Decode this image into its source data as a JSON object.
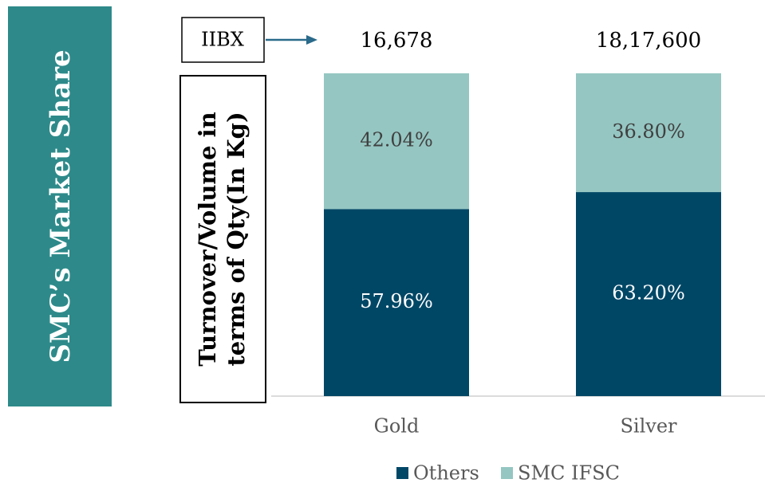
{
  "chart_data": {
    "type": "stacked_bar",
    "title": "SMC’s Market Share",
    "ylabel": "Turnover/Volume in terms of Qty(In Kg)",
    "categories": [
      "Gold",
      "Silver"
    ],
    "ylim": [
      0,
      100
    ],
    "series": [
      {
        "name": "Others",
        "color": "#004766",
        "values": [
          57.96,
          63.2
        ],
        "value_labels": [
          "57.96%",
          "63.20%"
        ]
      },
      {
        "name": "SMC IFSC",
        "color": "#95c6c2",
        "values": [
          42.04,
          36.8
        ],
        "value_labels": [
          "42.04%",
          "36.80%"
        ]
      }
    ],
    "totals": {
      "name": "IIBX",
      "values": [
        16678,
        1817600
      ],
      "value_labels": [
        "16,678",
        "18,17,600"
      ]
    },
    "legend": "bottom"
  }
}
